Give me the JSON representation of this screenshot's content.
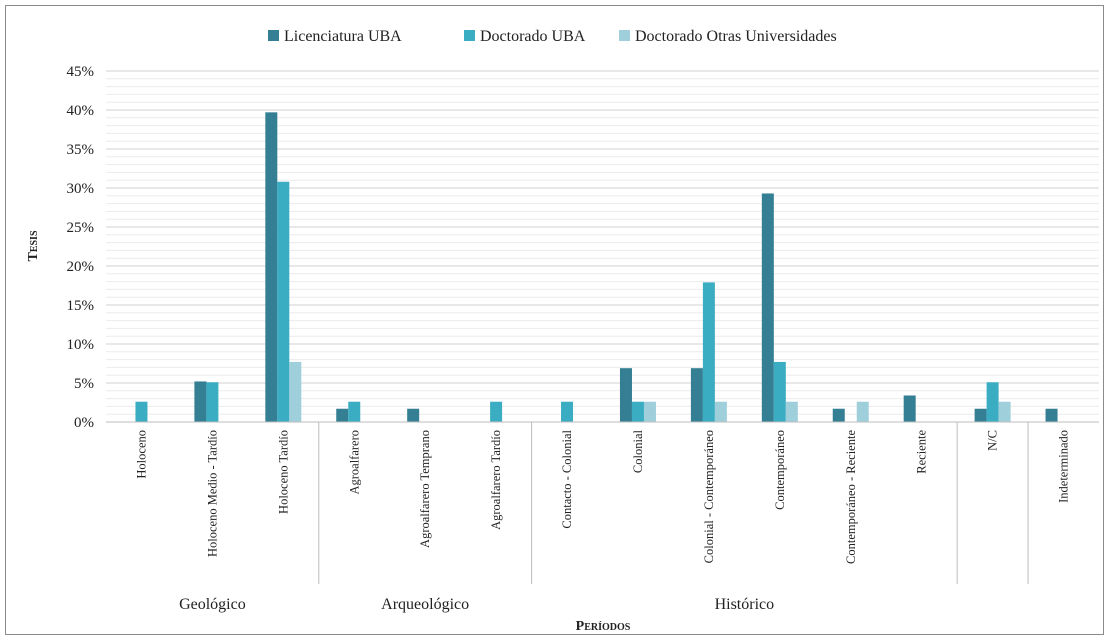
{
  "chart_data": {
    "type": "bar",
    "title": "",
    "ylabel": "Tesis",
    "xlabel": "Períodos",
    "ylim": [
      0,
      45
    ],
    "yticks": [
      "0%",
      "5%",
      "10%",
      "15%",
      "20%",
      "25%",
      "30%",
      "35%",
      "40%",
      "45%"
    ],
    "grid": true,
    "legend_position": "top-center",
    "categories": [
      "Holoceno",
      "Holoceno Medio - Tardío",
      "Holoceno Tardío",
      "Agroalfarero",
      "Agroalfarero Temprano",
      "Agroalfarero Tardío",
      "Contacto - Colonial",
      "Colonial",
      "Colonial - Contemporáneo",
      "Contemporáneo",
      "Contemporáneo - Reciente",
      "Reciente",
      "N/C",
      "Indeterminado"
    ],
    "groups": [
      {
        "label": "Geológico",
        "start": 0,
        "end": 2
      },
      {
        "label": "Arqueológico",
        "start": 3,
        "end": 5
      },
      {
        "label": "Histórico",
        "start": 6,
        "end": 11
      },
      {
        "label": "",
        "start": 12,
        "end": 12
      },
      {
        "label": "",
        "start": 13,
        "end": 13
      }
    ],
    "series": [
      {
        "name": "Licenciatura UBA",
        "color": "#347f93",
        "values": [
          0,
          5.2,
          39.7,
          1.7,
          1.7,
          0,
          0,
          6.9,
          6.9,
          29.3,
          1.7,
          3.4,
          1.7,
          1.7
        ]
      },
      {
        "name": "Doctorado UBA",
        "color": "#3badc2",
        "values": [
          2.6,
          5.1,
          30.8,
          2.6,
          0,
          2.6,
          2.6,
          2.6,
          17.9,
          7.7,
          0,
          0,
          5.1,
          0
        ]
      },
      {
        "name": "Doctorado Otras Universidades",
        "color": "#9fcfdb",
        "values": [
          0,
          0,
          7.7,
          0,
          0,
          0,
          0,
          2.6,
          2.6,
          2.6,
          2.6,
          0,
          2.6,
          0
        ]
      }
    ]
  }
}
